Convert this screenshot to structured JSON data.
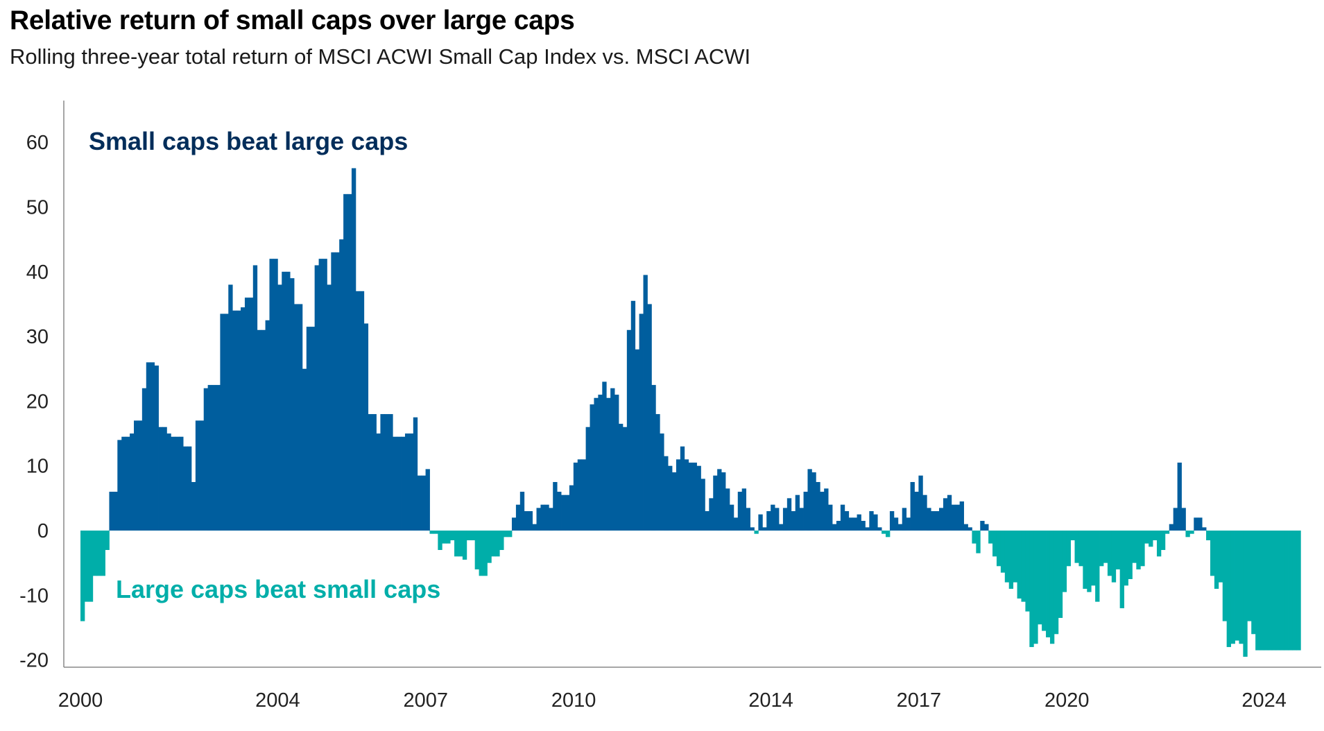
{
  "chart_data": {
    "type": "bar",
    "title": "Relative return of small caps over large caps",
    "subtitle": "Rolling three-year total return of MSCI ACWI Small Cap Index vs. MSCI ACWI",
    "xlabel": "",
    "ylabel": "",
    "ylim": [
      -20,
      65
    ],
    "y_ticks": [
      60,
      50,
      40,
      30,
      20,
      10,
      0,
      -10,
      -20
    ],
    "y_tick_labels": [
      "60",
      "50",
      "40",
      "30",
      "20",
      "10",
      "0",
      "-10",
      "-20"
    ],
    "x_range": [
      2000.0,
      2024.75
    ],
    "x_ticks": [
      2000,
      2004,
      2007,
      2010,
      2014,
      2017,
      2020,
      2024
    ],
    "x_tick_labels": [
      "2000",
      "2004",
      "2007",
      "2010",
      "2014",
      "2017",
      "2020",
      "2024"
    ],
    "bar_period_years": 0.0833,
    "colors": {
      "positive": "#005E9E",
      "negative": "#00AEA9",
      "axis": "#888888",
      "positive_label": "#002D5A",
      "negative_label": "#00AEA9"
    },
    "annotations": {
      "positive": "Small caps beat large caps",
      "negative": "Large caps beat small caps"
    },
    "series": [
      {
        "name": "Relative return",
        "anchors": [
          [
            2000.0,
            -14
          ],
          [
            2000.08,
            -11
          ],
          [
            2000.17,
            -7
          ],
          [
            2000.25,
            -6.5
          ],
          [
            2000.33,
            -7
          ],
          [
            2000.42,
            -3
          ],
          [
            2000.5,
            4
          ],
          [
            2000.58,
            6
          ],
          [
            2000.67,
            14
          ],
          [
            2000.75,
            8
          ],
          [
            2000.83,
            14.5
          ],
          [
            2000.92,
            15
          ],
          [
            2001.0,
            17
          ],
          [
            2001.17,
            22
          ],
          [
            2001.25,
            26
          ],
          [
            2001.42,
            25.5
          ],
          [
            2001.5,
            20
          ],
          [
            2001.58,
            16
          ],
          [
            2001.67,
            15
          ],
          [
            2001.83,
            14.5
          ],
          [
            2002.0,
            15
          ],
          [
            2002.08,
            13
          ],
          [
            2002.17,
            7.5
          ],
          [
            2002.25,
            12
          ],
          [
            2002.33,
            17
          ],
          [
            2002.42,
            22
          ],
          [
            2002.5,
            19
          ],
          [
            2002.58,
            22.5
          ],
          [
            2002.75,
            24.5
          ],
          [
            2002.83,
            33.5
          ],
          [
            2002.92,
            38
          ],
          [
            2003.0,
            34
          ],
          [
            2003.17,
            34.5
          ],
          [
            2003.25,
            36
          ],
          [
            2003.42,
            41
          ],
          [
            2003.5,
            31
          ],
          [
            2003.67,
            32.5
          ],
          [
            2003.75,
            29.5
          ],
          [
            2003.83,
            42
          ],
          [
            2003.92,
            38
          ],
          [
            2004.0,
            41.5
          ],
          [
            2004.08,
            40
          ],
          [
            2004.17,
            39
          ],
          [
            2004.33,
            35
          ],
          [
            2004.42,
            25
          ],
          [
            2004.5,
            27.5
          ],
          [
            2004.58,
            31.5
          ],
          [
            2004.67,
            41
          ],
          [
            2004.83,
            42
          ],
          [
            2004.92,
            38
          ],
          [
            2005.0,
            41
          ],
          [
            2005.08,
            43
          ],
          [
            2005.17,
            45
          ],
          [
            2005.25,
            51
          ],
          [
            2005.33,
            52
          ],
          [
            2005.42,
            56
          ],
          [
            2005.5,
            51.5
          ],
          [
            2005.58,
            37
          ],
          [
            2005.67,
            32
          ],
          [
            2005.75,
            23
          ],
          [
            2005.83,
            18
          ],
          [
            2005.92,
            15
          ],
          [
            2006.0,
            16
          ],
          [
            2006.08,
            18
          ],
          [
            2006.25,
            17.5
          ],
          [
            2006.33,
            14.5
          ],
          [
            2006.5,
            19.5
          ],
          [
            2006.58,
            15
          ],
          [
            2006.67,
            17.5
          ],
          [
            2006.75,
            15
          ],
          [
            2006.83,
            8.5
          ],
          [
            2006.92,
            9.5
          ],
          [
            2007.0,
            0.5
          ],
          [
            2007.08,
            -0.5
          ],
          [
            2007.17,
            -3
          ],
          [
            2007.25,
            -2
          ],
          [
            2007.42,
            -1.5
          ],
          [
            2007.58,
            -4
          ],
          [
            2007.67,
            -4.5
          ],
          [
            2007.83,
            -1.5
          ],
          [
            2007.92,
            -6
          ],
          [
            2008.0,
            -7
          ],
          [
            2008.17,
            -5
          ],
          [
            2008.25,
            -6.5
          ],
          [
            2008.33,
            -4
          ],
          [
            2008.42,
            -3
          ],
          [
            2008.5,
            -1
          ],
          [
            2008.67,
            2
          ],
          [
            2008.75,
            4
          ],
          [
            2008.83,
            6
          ],
          [
            2008.92,
            3
          ],
          [
            2009.08,
            1
          ],
          [
            2009.17,
            3.5
          ],
          [
            2009.25,
            4
          ],
          [
            2009.42,
            3.5
          ],
          [
            2009.5,
            7.5
          ],
          [
            2009.58,
            6
          ],
          [
            2009.67,
            5.5
          ],
          [
            2009.83,
            7
          ],
          [
            2009.92,
            10.5
          ],
          [
            2010.0,
            11
          ],
          [
            2010.17,
            16
          ],
          [
            2010.25,
            19.5
          ],
          [
            2010.33,
            20.5
          ],
          [
            2010.42,
            21
          ],
          [
            2010.5,
            23
          ],
          [
            2010.58,
            20.5
          ],
          [
            2010.67,
            22
          ],
          [
            2010.75,
            21
          ],
          [
            2010.83,
            16.5
          ],
          [
            2010.92,
            16
          ],
          [
            2011.0,
            31
          ],
          [
            2011.08,
            35.5
          ],
          [
            2011.17,
            28
          ],
          [
            2011.25,
            33.5
          ],
          [
            2011.33,
            39.5
          ],
          [
            2011.42,
            35
          ],
          [
            2011.5,
            22.5
          ],
          [
            2011.58,
            18
          ],
          [
            2011.67,
            15
          ],
          [
            2011.75,
            11.5
          ],
          [
            2011.83,
            10
          ],
          [
            2011.92,
            9
          ],
          [
            2012.0,
            11
          ],
          [
            2012.08,
            13
          ],
          [
            2012.17,
            11
          ],
          [
            2012.25,
            10.5
          ],
          [
            2012.42,
            10
          ],
          [
            2012.5,
            8
          ],
          [
            2012.58,
            3
          ],
          [
            2012.67,
            5
          ],
          [
            2012.75,
            8.5
          ],
          [
            2012.83,
            9.5
          ],
          [
            2012.92,
            9
          ],
          [
            2013.0,
            6.5
          ],
          [
            2013.08,
            4
          ],
          [
            2013.17,
            2
          ],
          [
            2013.25,
            6
          ],
          [
            2013.33,
            6.5
          ],
          [
            2013.42,
            3.5
          ],
          [
            2013.5,
            0.5
          ],
          [
            2013.58,
            -0.5
          ],
          [
            2013.67,
            2.5
          ],
          [
            2013.75,
            0.5
          ],
          [
            2013.83,
            3
          ],
          [
            2013.92,
            4
          ],
          [
            2014.0,
            3.5
          ],
          [
            2014.08,
            1
          ],
          [
            2014.17,
            3.5
          ],
          [
            2014.25,
            5
          ],
          [
            2014.33,
            3
          ],
          [
            2014.42,
            5.5
          ],
          [
            2014.5,
            3.5
          ],
          [
            2014.58,
            6
          ],
          [
            2014.67,
            9.5
          ],
          [
            2014.75,
            9
          ],
          [
            2014.83,
            7.5
          ],
          [
            2014.92,
            6
          ],
          [
            2015.0,
            6.5
          ],
          [
            2015.08,
            4
          ],
          [
            2015.17,
            1
          ],
          [
            2015.25,
            1.5
          ],
          [
            2015.33,
            4
          ],
          [
            2015.42,
            3
          ],
          [
            2015.5,
            2
          ],
          [
            2015.67,
            2.5
          ],
          [
            2015.75,
            1.5
          ],
          [
            2015.83,
            0.5
          ],
          [
            2015.92,
            3
          ],
          [
            2016.0,
            2.5
          ],
          [
            2016.08,
            0.5
          ],
          [
            2016.17,
            -0.5
          ],
          [
            2016.25,
            -1
          ],
          [
            2016.33,
            3
          ],
          [
            2016.42,
            2
          ],
          [
            2016.5,
            1
          ],
          [
            2016.58,
            3.5
          ],
          [
            2016.67,
            2
          ],
          [
            2016.75,
            7.5
          ],
          [
            2016.83,
            6
          ],
          [
            2016.92,
            8.5
          ],
          [
            2017.0,
            5.5
          ],
          [
            2017.08,
            3.5
          ],
          [
            2017.17,
            3
          ],
          [
            2017.33,
            3.5
          ],
          [
            2017.42,
            5
          ],
          [
            2017.5,
            5.5
          ],
          [
            2017.58,
            4
          ],
          [
            2017.67,
            4
          ],
          [
            2017.75,
            4.5
          ],
          [
            2017.83,
            1
          ],
          [
            2017.92,
            0.5
          ],
          [
            2018.0,
            -2
          ],
          [
            2018.08,
            -3.5
          ],
          [
            2018.17,
            1.5
          ],
          [
            2018.25,
            1
          ],
          [
            2018.33,
            -2
          ],
          [
            2018.42,
            -4
          ],
          [
            2018.5,
            -5.5
          ],
          [
            2018.58,
            -6.5
          ],
          [
            2018.67,
            -8
          ],
          [
            2018.75,
            -9
          ],
          [
            2018.83,
            -8
          ],
          [
            2018.92,
            -10.5
          ],
          [
            2019.0,
            -11
          ],
          [
            2019.08,
            -12.5
          ],
          [
            2019.17,
            -18
          ],
          [
            2019.25,
            -17.5
          ],
          [
            2019.33,
            -14.5
          ],
          [
            2019.42,
            -15.5
          ],
          [
            2019.5,
            -16.5
          ],
          [
            2019.58,
            -17.5
          ],
          [
            2019.67,
            -16
          ],
          [
            2019.75,
            -13.5
          ],
          [
            2019.83,
            -9.5
          ],
          [
            2019.92,
            -5.5
          ],
          [
            2020.0,
            -1.5
          ],
          [
            2020.08,
            -5
          ],
          [
            2020.17,
            -5.5
          ],
          [
            2020.25,
            -9
          ],
          [
            2020.33,
            -9.5
          ],
          [
            2020.42,
            -8.5
          ],
          [
            2020.5,
            -11
          ],
          [
            2020.58,
            -5.5
          ],
          [
            2020.67,
            -5
          ],
          [
            2020.75,
            -7
          ],
          [
            2020.83,
            -8
          ],
          [
            2020.92,
            -6
          ],
          [
            2021.0,
            -12
          ],
          [
            2021.08,
            -8.5
          ],
          [
            2021.17,
            -7.5
          ],
          [
            2021.25,
            -5
          ],
          [
            2021.33,
            -6
          ],
          [
            2021.42,
            -5.5
          ],
          [
            2021.5,
            -2
          ],
          [
            2021.58,
            -2.5
          ],
          [
            2021.67,
            -1.5
          ],
          [
            2021.75,
            -4
          ],
          [
            2021.83,
            -3
          ],
          [
            2021.92,
            -0.5
          ],
          [
            2022.0,
            1
          ],
          [
            2022.08,
            3.5
          ],
          [
            2022.17,
            10.5
          ],
          [
            2022.25,
            3.5
          ],
          [
            2022.33,
            -1
          ],
          [
            2022.42,
            -0.5
          ],
          [
            2022.5,
            2
          ],
          [
            2022.58,
            2
          ],
          [
            2022.67,
            0.5
          ],
          [
            2022.75,
            -1.5
          ],
          [
            2022.83,
            -7
          ],
          [
            2022.92,
            -9
          ],
          [
            2023.0,
            -8
          ],
          [
            2023.08,
            -14
          ],
          [
            2023.17,
            -18
          ],
          [
            2023.25,
            -17.5
          ],
          [
            2023.33,
            -17
          ],
          [
            2023.42,
            -17.5
          ],
          [
            2023.5,
            -19.5
          ],
          [
            2023.58,
            -14
          ],
          [
            2023.67,
            -16
          ],
          [
            2023.75,
            -18.5
          ]
        ]
      }
    ]
  }
}
